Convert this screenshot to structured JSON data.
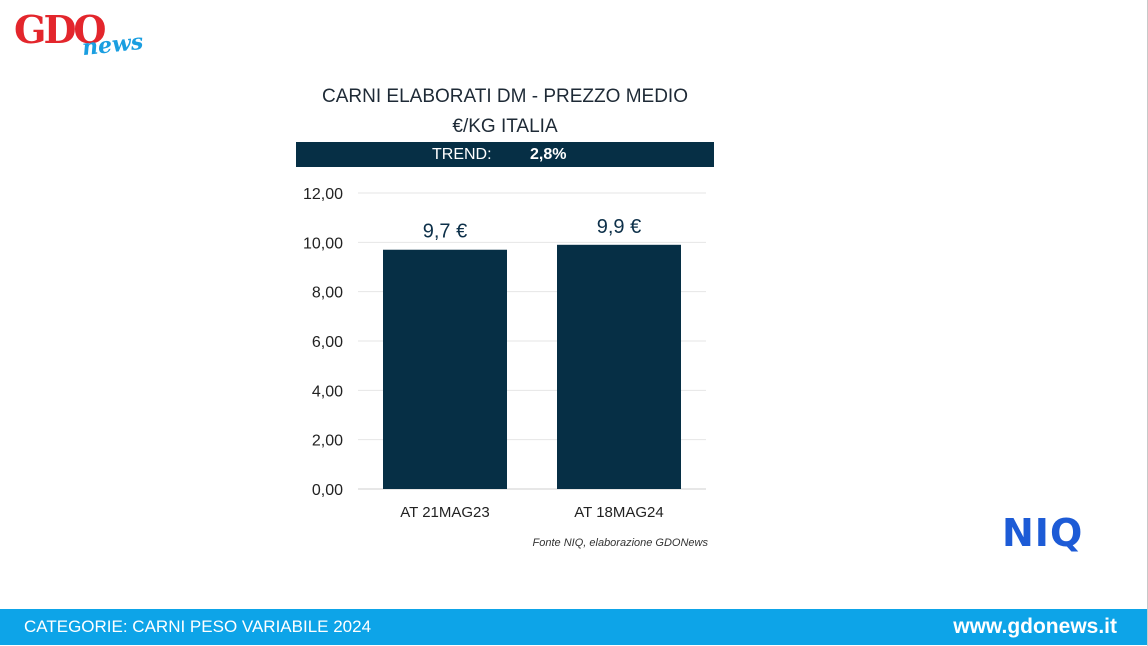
{
  "logo": {
    "brand": "GDO",
    "suffix": "news",
    "brand_color": "#e3262c",
    "suffix_color": "#1a9ee0"
  },
  "chart_title_line1": "CARNI ELABORATI DM - PREZZO MEDIO",
  "chart_title_line2": "€/KG ITALIA",
  "trend": {
    "label": "TREND:",
    "value": "2,8%"
  },
  "chart_data": {
    "type": "bar",
    "categories": [
      "AT 21MAG23",
      "AT 18MAG24"
    ],
    "values": [
      9.7,
      9.9
    ],
    "data_labels": [
      "9,7 €",
      "9,9 €"
    ],
    "ylim": [
      0,
      12
    ],
    "yticks": [
      "0,00",
      "2,00",
      "4,00",
      "6,00",
      "8,00",
      "10,00",
      "12,00"
    ],
    "ytick_values": [
      0,
      2,
      4,
      6,
      8,
      10,
      12
    ],
    "grid": true,
    "bar_color": "#062f45"
  },
  "source_note": "Fonte NIQ, elaborazione GDONews",
  "niq_logo": {
    "text": "NIQ",
    "color": "#1d5bd6"
  },
  "footer": {
    "category": "CATEGORIE: CARNI PESO VARIABILE 2024",
    "site": "www.gdonews.it",
    "color": "#0da4e8"
  }
}
